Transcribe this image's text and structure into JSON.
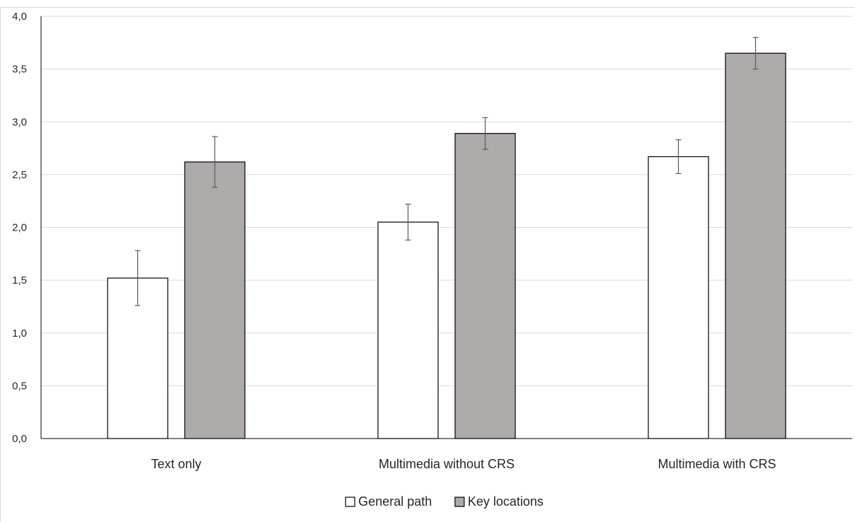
{
  "chart_data": {
    "type": "bar",
    "title": "",
    "xlabel": "",
    "ylabel": "",
    "categories": [
      "Text only",
      "Multimedia without CRS",
      "Multimedia with CRS"
    ],
    "series": [
      {
        "name": "General path",
        "color": "#ffffff",
        "values": [
          1.52,
          2.05,
          2.67
        ],
        "error": [
          0.26,
          0.17,
          0.16
        ]
      },
      {
        "name": "Key locations",
        "color": "#aeaaaa",
        "values": [
          2.62,
          2.89,
          3.65
        ],
        "error": [
          0.24,
          0.15,
          0.15
        ]
      }
    ],
    "ylim": [
      0,
      4.0
    ],
    "yticks": [
      "0,0",
      "0,5",
      "1,0",
      "1,5",
      "2,0",
      "2,5",
      "3,0",
      "3,5",
      "4,0"
    ],
    "ytick_values": [
      0,
      0.5,
      1.0,
      1.5,
      2.0,
      2.5,
      3.0,
      3.5,
      4.0
    ],
    "grid": true,
    "legend_position": "bottom"
  }
}
